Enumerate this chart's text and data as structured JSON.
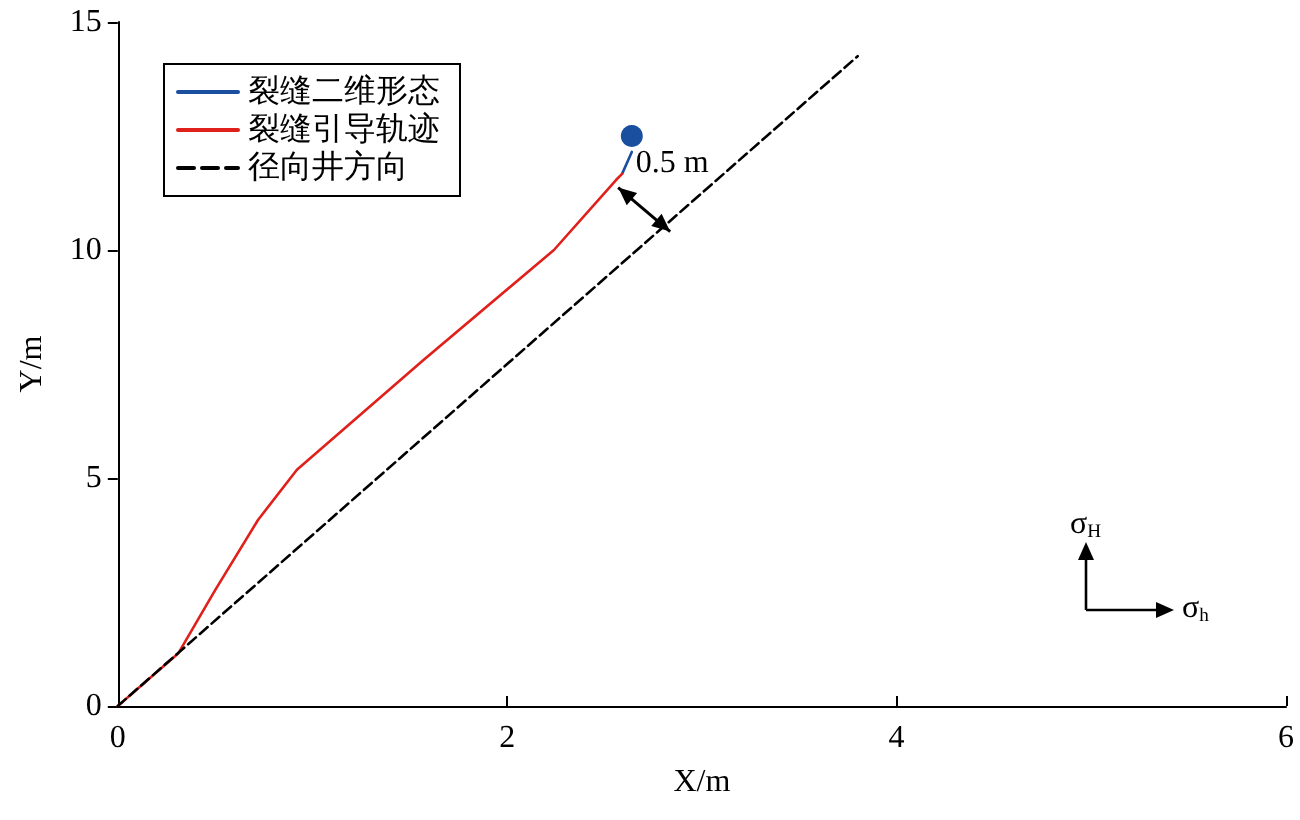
{
  "chart_data": {
    "type": "line",
    "xlabel": "X/m",
    "ylabel": "Y/m",
    "xlim": [
      0,
      6
    ],
    "ylim": [
      0,
      15
    ],
    "xticks": [
      0,
      2,
      4,
      6
    ],
    "yticks": [
      0,
      5,
      10,
      15
    ],
    "grid": false,
    "legend": "top left",
    "series": [
      {
        "name": "裂缝二维形态",
        "color": "#1a4fa0",
        "line_style": "solid",
        "marker": "none",
        "x": [
          2.59,
          2.64
        ],
        "values": [
          11.67,
          12.15
        ]
      },
      {
        "name": "裂缝引导轨迹",
        "color": "#e0201b",
        "line_style": "solid",
        "marker": "none",
        "x": [
          0,
          0.31,
          0.5,
          0.72,
          0.92,
          1.57,
          2.24,
          2.56,
          2.59
        ],
        "values": [
          0,
          1.15,
          2.54,
          4.08,
          5.18,
          7.59,
          10.0,
          11.54,
          11.67
        ]
      },
      {
        "name": "径向井方向",
        "color": "#000000",
        "line_style": "dashed",
        "marker": "none",
        "x": [
          0,
          3.8
        ],
        "values": [
          0,
          14.25
        ]
      },
      {
        "type": "scatter",
        "color": "#1a4fa0",
        "marker": "circle",
        "x": [
          2.64
        ],
        "values": [
          12.5
        ]
      }
    ],
    "annotations": [
      {
        "text": "0.5 m",
        "x": 2.66,
        "y": 11.9
      },
      "σ$_{H}$",
      "σ$_{h}$"
    ]
  }
}
